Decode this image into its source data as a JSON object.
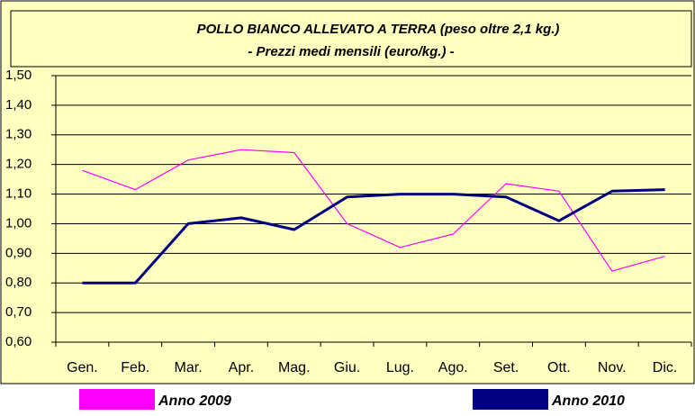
{
  "chart_data": {
    "type": "line",
    "title": [
      "POLLO BIANCO ALLEVATO A TERRA  (peso oltre 2,1 kg.)",
      "- Prezzi medi mensili (euro/kg.) -"
    ],
    "categories": [
      "Gen.",
      "Feb.",
      "Mar.",
      "Apr.",
      "Mag.",
      "Giu.",
      "Lug.",
      "Ago.",
      "Set.",
      "Ott.",
      "Nov.",
      "Dic."
    ],
    "series": [
      {
        "name": "Anno 2009",
        "color": "#ff00ff",
        "values": [
          1.18,
          1.115,
          1.215,
          1.25,
          1.24,
          1.0,
          0.92,
          0.965,
          1.135,
          1.11,
          0.84,
          0.89
        ]
      },
      {
        "name": "Anno 2010",
        "color": "#000080",
        "values": [
          0.8,
          0.8,
          1.0,
          1.02,
          0.98,
          1.09,
          1.1,
          1.1,
          1.09,
          1.01,
          1.11,
          1.115
        ]
      }
    ],
    "ylim": [
      0.6,
      1.5
    ],
    "yticks": [
      {
        "value": 0.6,
        "label": "0,60"
      },
      {
        "value": 0.7,
        "label": "0,70"
      },
      {
        "value": 0.8,
        "label": "0,80"
      },
      {
        "value": 0.9,
        "label": "0,90"
      },
      {
        "value": 1.0,
        "label": "1,00"
      },
      {
        "value": 1.1,
        "label": "1,10"
      },
      {
        "value": 1.2,
        "label": "1,20"
      },
      {
        "value": 1.3,
        "label": "1,30"
      },
      {
        "value": 1.4,
        "label": "1,40"
      },
      {
        "value": 1.5,
        "label": "1,50"
      }
    ],
    "grid": true
  }
}
